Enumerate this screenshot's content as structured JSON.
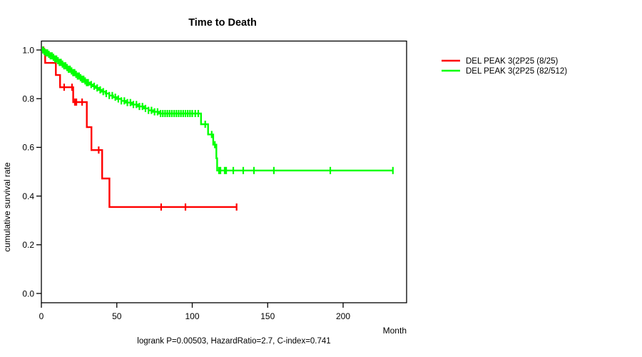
{
  "chart_data": {
    "type": "line",
    "subtype": "kaplan-meier-step-survival",
    "title": "Time to Death",
    "xlabel": "Month",
    "ylabel": "cumulative survival rate",
    "xlim": [
      0,
      242
    ],
    "ylim": [
      0.0,
      1.0
    ],
    "x_ticks": [
      0,
      50,
      100,
      150,
      200
    ],
    "y_tick_labels": [
      "0.0",
      "0.2",
      "0.4",
      "0.6",
      "0.8",
      "1.0"
    ],
    "grid": false,
    "legend_position": "right-outside-top",
    "series": [
      {
        "name": "DEL PEAK  3(2P25 (8/25)",
        "color": "#ff0000",
        "points": [
          [
            0,
            1.0
          ],
          [
            2.5,
            0.947
          ],
          [
            9.6,
            0.897
          ],
          [
            12.4,
            0.847
          ],
          [
            21.1,
            0.786
          ],
          [
            30.1,
            0.683
          ],
          [
            33.2,
            0.589
          ],
          [
            40.3,
            0.472
          ],
          [
            45.1,
            0.355
          ],
          [
            129.4,
            0.355
          ]
        ],
        "censor_marks": [
          1.4,
          15.1,
          20.3,
          22.2,
          23.2,
          27,
          38,
          79.4,
          95.5,
          129.4
        ]
      },
      {
        "name": "DEL PEAK  3(2P25 (82/512)",
        "color": "#00ff00",
        "points": [
          [
            0,
            1.0
          ],
          [
            1.5,
            0.994
          ],
          [
            3,
            0.988
          ],
          [
            4.5,
            0.982
          ],
          [
            6,
            0.976
          ],
          [
            7.5,
            0.97
          ],
          [
            9,
            0.963
          ],
          [
            10.5,
            0.956
          ],
          [
            12,
            0.949
          ],
          [
            13.5,
            0.942
          ],
          [
            15,
            0.935
          ],
          [
            16.5,
            0.928
          ],
          [
            18,
            0.921
          ],
          [
            19.5,
            0.914
          ],
          [
            21,
            0.907
          ],
          [
            22.5,
            0.9
          ],
          [
            24,
            0.893
          ],
          [
            25.5,
            0.886
          ],
          [
            27,
            0.88
          ],
          [
            28.5,
            0.873
          ],
          [
            30,
            0.866
          ],
          [
            32,
            0.858
          ],
          [
            34,
            0.851
          ],
          [
            36,
            0.844
          ],
          [
            38,
            0.836
          ],
          [
            40,
            0.829
          ],
          [
            42.5,
            0.821
          ],
          [
            45,
            0.813
          ],
          [
            47.5,
            0.806
          ],
          [
            50,
            0.799
          ],
          [
            53,
            0.791
          ],
          [
            56,
            0.784
          ],
          [
            60,
            0.776
          ],
          [
            64,
            0.768
          ],
          [
            68,
            0.76
          ],
          [
            71,
            0.752
          ],
          [
            74,
            0.746
          ],
          [
            78,
            0.739
          ],
          [
            105.8,
            0.695
          ],
          [
            110.5,
            0.653
          ],
          [
            113.9,
            0.611
          ],
          [
            116,
            0.555
          ],
          [
            116.5,
            0.505
          ],
          [
            233,
            0.505
          ]
        ],
        "censor_marks": [
          1,
          2,
          3,
          4,
          5,
          6,
          7,
          8,
          9,
          10,
          11,
          12,
          13,
          14,
          15,
          16,
          17,
          18,
          19,
          20,
          21,
          22,
          23,
          24,
          25,
          26,
          27,
          28,
          29,
          30,
          31,
          33,
          35,
          37,
          39,
          41,
          43,
          45,
          47,
          49,
          51,
          53,
          55,
          57,
          59,
          61,
          63,
          65,
          67,
          69,
          71,
          73,
          75,
          77,
          79,
          80.5,
          82,
          83.5,
          85,
          86.5,
          88,
          89.5,
          91,
          92.5,
          94,
          95.5,
          97,
          98.5,
          100,
          102,
          104,
          108.6,
          112.9,
          115,
          117.7,
          118.7,
          121.5,
          122.5,
          127.2,
          133.8,
          140.9,
          154.1,
          191.5,
          233
        ]
      }
    ]
  },
  "legend": {
    "entries": [
      {
        "label": "DEL PEAK  3(2P25 (8/25)",
        "color": "#ff0000"
      },
      {
        "label": "DEL PEAK  3(2P25 (82/512)",
        "color": "#00ff00"
      }
    ]
  },
  "footer": {
    "text": "logrank P=0.00503, HazardRatio=2.7, C-index=0.741"
  },
  "stats": {
    "logrank_p": "0.00503",
    "hazard_ratio": "2.7",
    "c_index": "0.741"
  }
}
